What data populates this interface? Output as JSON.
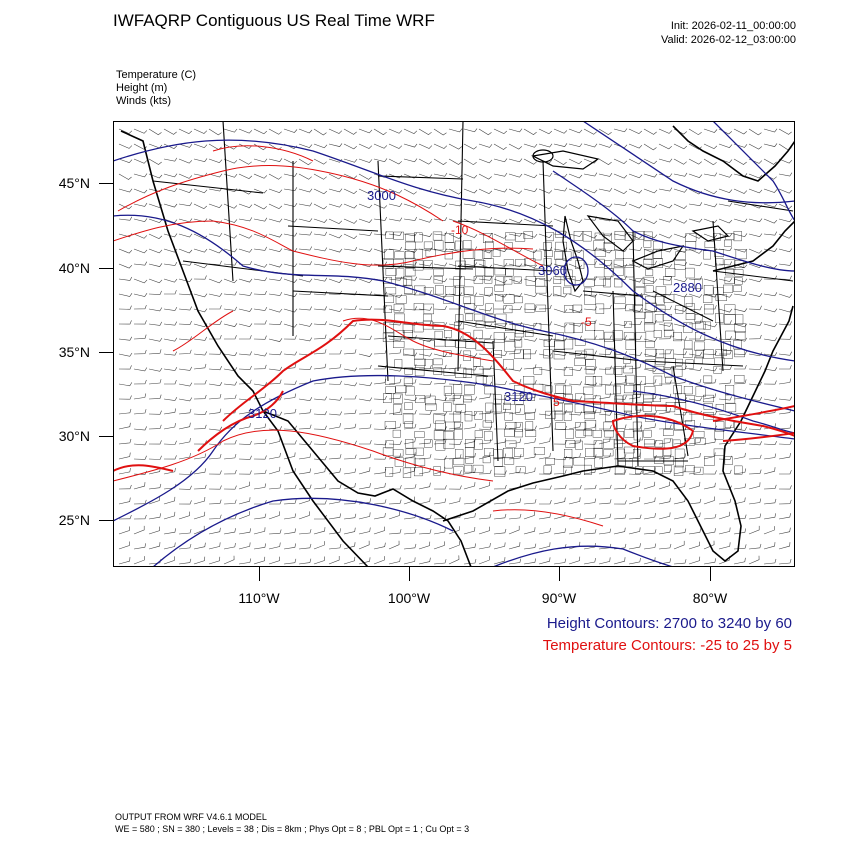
{
  "header": {
    "title": "IWFAQRP Contiguous US Real Time WRF",
    "init": "Init: 2026-02-11_00:00:00",
    "valid": "Valid: 2026-02-12_03:00:00"
  },
  "variables": {
    "temperature": "Temperature   (C)",
    "height": "Height   (m)",
    "winds": "Winds   (kts)"
  },
  "axes": {
    "lat_labels": [
      "45°N",
      "40°N",
      "35°N",
      "30°N",
      "25°N"
    ],
    "lon_labels": [
      "110°W",
      "100°W",
      "90°W",
      "80°W"
    ]
  },
  "map": {
    "height_contour_labels": [
      "3000",
      "3060",
      "2880",
      "3120",
      "3120"
    ],
    "temperature_contour_labels": [
      "-10",
      "-5",
      "5"
    ]
  },
  "info": {
    "height_contours": "Height Contours: 2700 to 3240 by 60",
    "temperature_contours": "Temperature Contours: -25 to 25 by 5"
  },
  "footer": {
    "line1": "OUTPUT FROM WRF V4.6.1 MODEL",
    "line2": "WE = 580 ; SN = 380 ; Levels = 38 ; Dis = 8km ; Phys Opt = 8 ; PBL Opt = 1 ; Cu Opt = 3"
  },
  "colors": {
    "height_contour": "#1a1a8c",
    "temperature_contour": "#e01010",
    "map_lines": "#000000"
  }
}
